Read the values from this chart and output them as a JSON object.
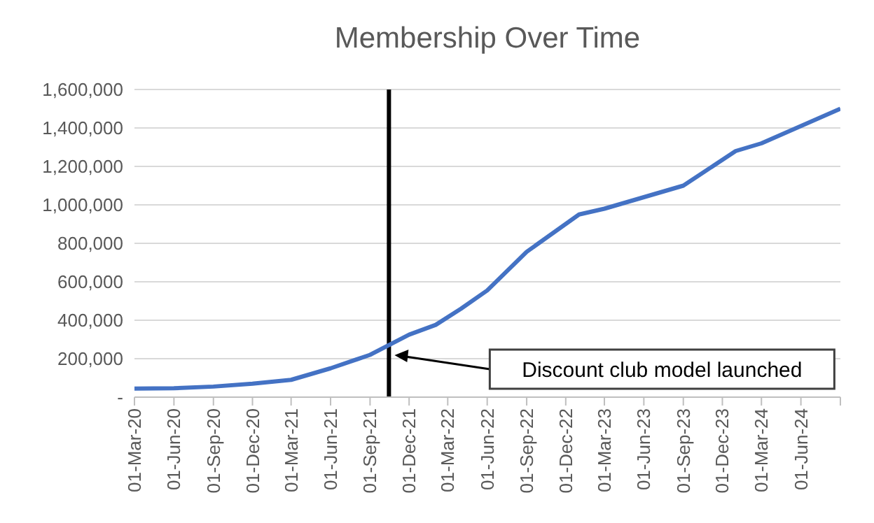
{
  "chart_data": {
    "type": "line",
    "title": "Membership Over Time",
    "x": [
      "2020-03-01",
      "2020-06-01",
      "2020-09-01",
      "2020-12-01",
      "2021-03-01",
      "2021-06-01",
      "2021-09-01",
      "2021-12-01",
      "2022-02-01",
      "2022-04-01",
      "2022-06-01",
      "2022-09-01",
      "2023-01-01",
      "2023-03-01",
      "2023-09-01",
      "2024-01-01",
      "2024-03-01",
      "2024-09-01"
    ],
    "series": [
      {
        "color": "#4472c4",
        "values": [
          45000,
          46000,
          55000,
          70000,
          90000,
          150000,
          220000,
          325000,
          376000,
          460000,
          555000,
          756000,
          950000,
          980000,
          1100000,
          1280000,
          1320000,
          1500000
        ]
      }
    ],
    "xlim": [
      "2020-03-01",
      "2024-09-01"
    ],
    "xticks": [
      {
        "value": "2020-03-01",
        "label": "01-Mar-20"
      },
      {
        "value": "2020-06-01",
        "label": "01-Jun-20"
      },
      {
        "value": "2020-09-01",
        "label": "01-Sep-20"
      },
      {
        "value": "2020-12-01",
        "label": "01-Dec-20"
      },
      {
        "value": "2021-03-01",
        "label": "01-Mar-21"
      },
      {
        "value": "2021-06-01",
        "label": "01-Jun-21"
      },
      {
        "value": "2021-09-01",
        "label": "01-Sep-21"
      },
      {
        "value": "2021-12-01",
        "label": "01-Dec-21"
      },
      {
        "value": "2022-03-01",
        "label": "01-Mar-22"
      },
      {
        "value": "2022-06-01",
        "label": "01-Jun-22"
      },
      {
        "value": "2022-09-01",
        "label": "01-Sep-22"
      },
      {
        "value": "2022-12-01",
        "label": "01-Dec-22"
      },
      {
        "value": "2023-03-01",
        "label": "01-Mar-23"
      },
      {
        "value": "2023-06-01",
        "label": "01-Jun-23"
      },
      {
        "value": "2023-09-01",
        "label": "01-Sep-23"
      },
      {
        "value": "2023-12-01",
        "label": "01-Dec-23"
      },
      {
        "value": "2024-03-01",
        "label": "01-Mar-24"
      },
      {
        "value": "2024-06-01",
        "label": "01-Jun-24"
      },
      {
        "value": "2024-09-01",
        "label": null
      }
    ],
    "ylim": [
      0,
      1600000
    ],
    "yticks": [
      {
        "value": 0,
        "label": "-"
      },
      {
        "value": 200000,
        "label": "200,000"
      },
      {
        "value": 400000,
        "label": "400,000"
      },
      {
        "value": 600000,
        "label": "600,000"
      },
      {
        "value": 800000,
        "label": "800,000"
      },
      {
        "value": 1000000,
        "label": "1,000,000"
      },
      {
        "value": 1200000,
        "label": "1,200,000"
      },
      {
        "value": 1400000,
        "label": "1,400,000"
      },
      {
        "value": 1600000,
        "label": "1,600,000"
      }
    ],
    "grid": "y",
    "legend": false,
    "marker": "none",
    "line_style": "solid",
    "ref_lines": [
      {
        "axis": "x",
        "value": "2021-10-15",
        "color": "#000000"
      }
    ],
    "annotations": [
      "Discount club model launched"
    ]
  }
}
